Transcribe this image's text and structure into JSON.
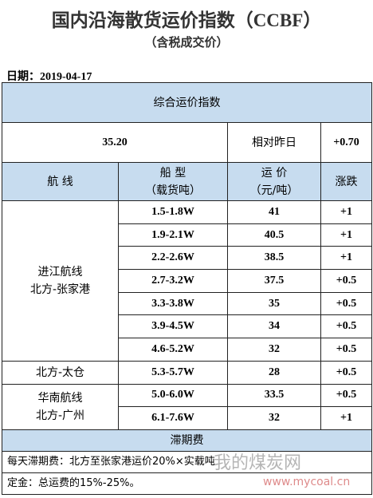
{
  "header": {
    "title": "国内沿海散货运价指数（CCBF）",
    "subtitle": "（含税成交价）",
    "date": "日期：2019-04-17"
  },
  "table": {
    "title": "综合运价指数",
    "index": {
      "value": "35.20",
      "label": "相对昨日",
      "change": "+0.70"
    },
    "columns": [
      "航  线",
      "船  型\n（载货吨）",
      "运  价\n（元/吨）",
      "涨跌"
    ],
    "routes": [
      {
        "name": "进江航线\n北方-张家港",
        "rows": [
          [
            "1.5-1.8W",
            "41",
            "+1"
          ],
          [
            "1.9-2.1W",
            "40.5",
            "+1"
          ],
          [
            "2.2-2.6W",
            "38.5",
            "+1"
          ],
          [
            "2.7-3.2W",
            "37.5",
            "+0.5"
          ],
          [
            "3.3-3.8W",
            "35",
            "+0.5"
          ],
          [
            "3.9-4.5W",
            "34",
            "+0.5"
          ],
          [
            "4.6-5.2W",
            "32",
            "+0.5"
          ]
        ]
      },
      {
        "name": "北方-太仓",
        "rows": [
          [
            "5.3-5.7W",
            "28",
            "+0.5"
          ]
        ]
      },
      {
        "name": "华南航线\n北方-广州",
        "rows": [
          [
            "5.0-6.0W",
            "33.5",
            "+0.5"
          ],
          [
            "6.1-7.6W",
            "32",
            "+1"
          ]
        ]
      }
    ],
    "demurrage": {
      "title": "滞期费",
      "lines": [
        "每天滞期费：北方至张家港运价20%×实载吨",
        "定金：总运费的15%-25%。"
      ]
    }
  },
  "watermark": {
    "text": "我的煤炭网",
    "url": "www.mycoal.cn"
  }
}
